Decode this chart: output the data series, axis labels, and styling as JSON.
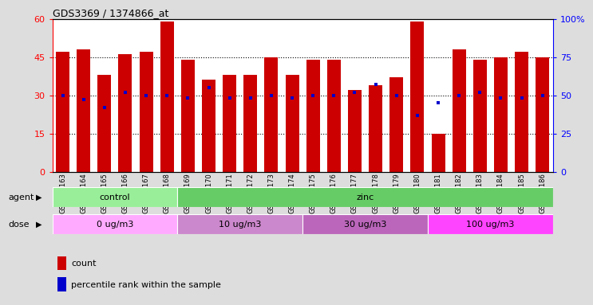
{
  "title": "GDS3369 / 1374866_at",
  "samples": [
    "GSM280163",
    "GSM280164",
    "GSM280165",
    "GSM280166",
    "GSM280167",
    "GSM280168",
    "GSM280169",
    "GSM280170",
    "GSM280171",
    "GSM280172",
    "GSM280173",
    "GSM280174",
    "GSM280175",
    "GSM280176",
    "GSM280177",
    "GSM280178",
    "GSM280179",
    "GSM280180",
    "GSM280181",
    "GSM280182",
    "GSM280183",
    "GSM280184",
    "GSM280185",
    "GSM280186"
  ],
  "bar_heights": [
    47,
    48,
    38,
    46,
    47,
    59,
    44,
    36,
    38,
    38,
    45,
    38,
    44,
    44,
    32,
    34,
    37,
    59,
    15,
    48,
    44,
    45,
    47,
    45
  ],
  "blue_dots_pct": [
    50,
    47,
    42,
    52,
    50,
    50,
    48,
    55,
    48,
    48,
    50,
    48,
    50,
    50,
    52,
    57,
    50,
    37,
    45,
    50,
    52,
    48,
    48,
    50
  ],
  "bar_color": "#cc0000",
  "dot_color": "#0000cc",
  "ylim_left": [
    0,
    60
  ],
  "ylim_right": [
    0,
    100
  ],
  "yticks_left": [
    0,
    15,
    30,
    45,
    60
  ],
  "ytick_labels_left": [
    "0",
    "15",
    "30",
    "45",
    "60"
  ],
  "ytick_labels_right": [
    "0",
    "25",
    "50",
    "75",
    "100%"
  ],
  "agent_groups": [
    {
      "label": "control",
      "start": 0,
      "end": 6,
      "color": "#99ee99"
    },
    {
      "label": "zinc",
      "start": 6,
      "end": 24,
      "color": "#66cc66"
    }
  ],
  "dose_groups": [
    {
      "label": "0 ug/m3",
      "start": 0,
      "end": 6,
      "color": "#ffaaff"
    },
    {
      "label": "10 ug/m3",
      "start": 6,
      "end": 12,
      "color": "#cc88cc"
    },
    {
      "label": "30 ug/m3",
      "start": 12,
      "end": 18,
      "color": "#cc66cc"
    },
    {
      "label": "100 ug/m3",
      "start": 18,
      "end": 24,
      "color": "#ff44ff"
    }
  ],
  "agent_label": "agent",
  "dose_label": "dose",
  "legend_count": "count",
  "legend_percentile": "percentile rank within the sample",
  "fig_bg": "#dddddd",
  "plot_bg": "#ffffff"
}
